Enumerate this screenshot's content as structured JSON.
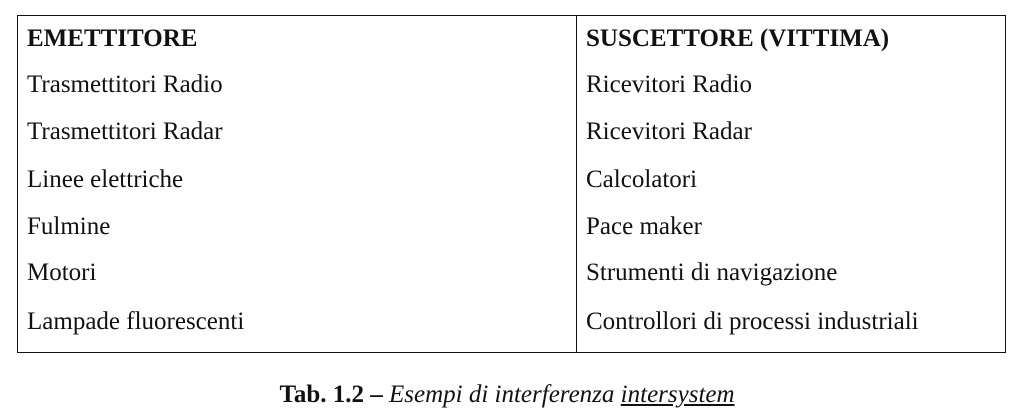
{
  "table": {
    "headers": [
      "EMETTITORE",
      "SUSCETTORE (VITTIMA)"
    ],
    "rows": [
      [
        "Trasmettitori Radio",
        "Ricevitori Radio"
      ],
      [
        "Trasmettitori Radar",
        "Ricevitori Radar"
      ],
      [
        "Linee elettriche",
        "Calcolatori"
      ],
      [
        "Fulmine",
        "Pace maker"
      ],
      [
        "Motori",
        "Strumenti di navigazione"
      ],
      [
        "Lampade fluorescenti",
        "Controllori di processi industriali"
      ]
    ]
  },
  "caption": {
    "label": "Tab. 1.2 –",
    "text": "Esempi di interferenza",
    "underlined": "intersystem"
  }
}
